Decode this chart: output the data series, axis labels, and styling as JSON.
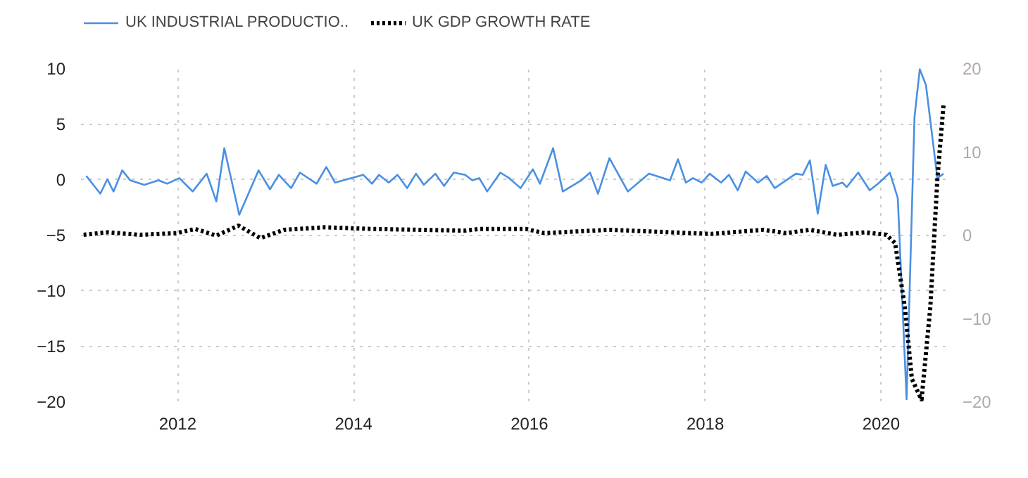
{
  "chart_data": {
    "type": "line",
    "xlim": [
      2010.9,
      2020.75
    ],
    "xticks": [
      2012,
      2014,
      2016,
      2018,
      2020
    ],
    "ylim": [
      -20,
      10
    ],
    "yticks": [
      -20,
      -15,
      -10,
      -5,
      0,
      5,
      10
    ],
    "y2lim": [
      -20,
      20
    ],
    "y2ticks": [
      -20,
      -10,
      0,
      10,
      20
    ],
    "grid": true,
    "legend": "top left",
    "marker": "none",
    "series": [
      {
        "name": "UK INDUSTRIAL PRODUCTIO..",
        "color": "#4a90e2",
        "line_style": "solid",
        "x": [
          2010.96,
          2011.12,
          2011.2,
          2011.27,
          2011.37,
          2011.46,
          2011.62,
          2011.78,
          2011.88,
          2012.02,
          2012.17,
          2012.33,
          2012.44,
          2012.53,
          2012.7,
          2012.92,
          2013.05,
          2013.15,
          2013.29,
          2013.39,
          2013.58,
          2013.69,
          2013.79,
          2014.11,
          2014.21,
          2014.29,
          2014.4,
          2014.5,
          2014.61,
          2014.71,
          2014.8,
          2014.93,
          2015.03,
          2015.14,
          2015.27,
          2015.35,
          2015.43,
          2015.52,
          2015.67,
          2015.77,
          2015.9,
          2016.04,
          2016.12,
          2016.27,
          2016.38,
          2016.59,
          2016.69,
          2016.78,
          2016.91,
          2017.12,
          2017.36,
          2017.6,
          2017.69,
          2017.78,
          2017.86,
          2017.96,
          2018.05,
          2018.18,
          2018.27,
          2018.37,
          2018.46,
          2018.6,
          2018.7,
          2018.79,
          2019.03,
          2019.11,
          2019.19,
          2019.28,
          2019.37,
          2019.45,
          2019.56,
          2019.61,
          2019.74,
          2019.87,
          2019.98,
          2020.1,
          2020.19,
          2020.29,
          2020.38,
          2020.44,
          2020.51,
          2020.64,
          2020.71
        ],
        "values": [
          0.3,
          -1.3,
          0,
          -1.1,
          0.8,
          -0.1,
          -0.5,
          -0.1,
          -0.4,
          0.1,
          -1.1,
          0.5,
          -2,
          2.8,
          -3.2,
          0.8,
          -0.9,
          0.4,
          -0.8,
          0.6,
          -0.4,
          1.1,
          -0.3,
          0.4,
          -0.4,
          0.4,
          -0.3,
          0.4,
          -0.8,
          0.5,
          -0.5,
          0.5,
          -0.6,
          0.6,
          0.4,
          -0.1,
          0.1,
          -1.1,
          0.6,
          0.1,
          -0.8,
          0.9,
          -0.4,
          2.8,
          -1.1,
          -0.1,
          0.6,
          -1.3,
          1.9,
          -1.1,
          0.5,
          -0.1,
          1.8,
          -0.3,
          0.1,
          -0.3,
          0.5,
          -0.3,
          0.4,
          -1,
          0.7,
          -0.3,
          0.3,
          -0.8,
          0.5,
          0.4,
          1.7,
          -3.1,
          1.3,
          -0.6,
          -0.3,
          -0.7,
          0.6,
          -1,
          -0.3,
          0.6,
          -1.7,
          -19.8,
          5.6,
          9.9,
          8.5,
          0.1,
          0.5
        ]
      },
      {
        "name": "UK GDP GROWTH RATE",
        "color": "#000000",
        "line_style": "dotted",
        "axis": "y2",
        "x": [
          2010.93,
          2011.2,
          2011.57,
          2011.99,
          2012.2,
          2012.44,
          2012.69,
          2012.94,
          2013.21,
          2013.68,
          2014.21,
          2015.27,
          2015.43,
          2015.96,
          2016.17,
          2016.91,
          2018.07,
          2018.66,
          2018.92,
          2019.19,
          2019.5,
          2019.82,
          2020.06,
          2020.16,
          2020.27,
          2020.35,
          2020.46,
          2020.56,
          2020.64,
          2020.71
        ],
        "values": [
          0,
          0.3,
          0,
          0.2,
          0.7,
          -0.1,
          1.1,
          -0.4,
          0.6,
          0.9,
          0.7,
          0.5,
          0.7,
          0.7,
          0.2,
          0.6,
          0.1,
          0.6,
          0.2,
          0.6,
          0,
          0.3,
          0,
          -1,
          -8.7,
          -17.3,
          -19.8,
          -8.7,
          6.7,
          15.6
        ]
      }
    ]
  }
}
